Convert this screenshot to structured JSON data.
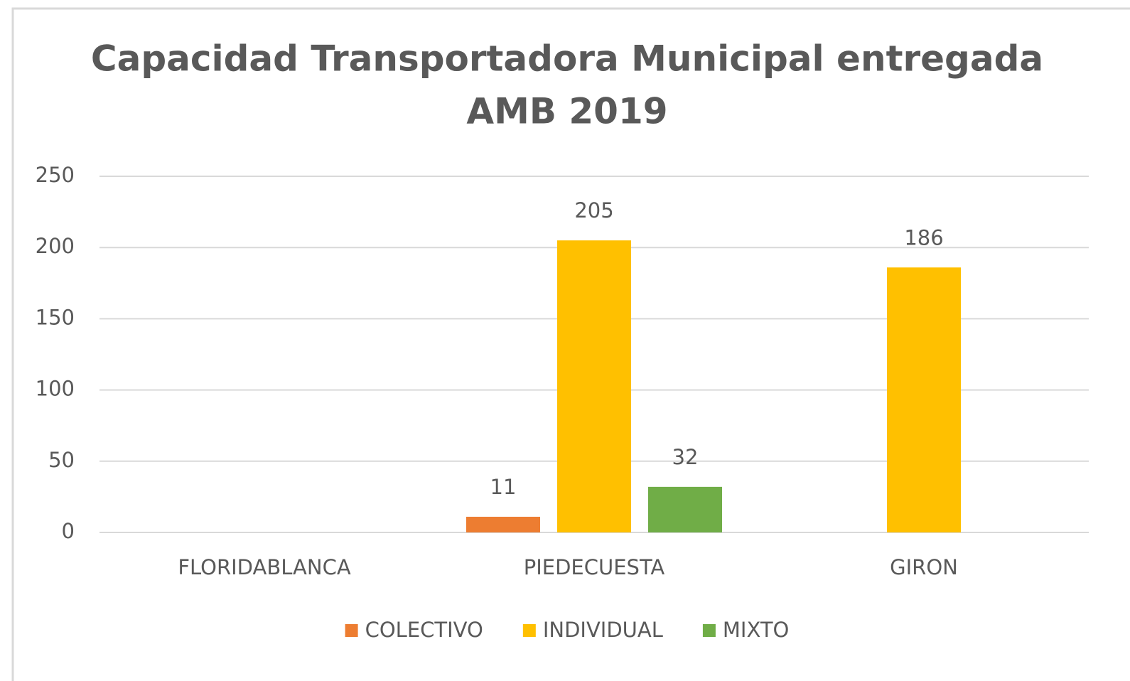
{
  "chart_data": {
    "type": "bar",
    "title": [
      "Capacidad Transportadora Municipal entregada",
      "AMB 2019"
    ],
    "categories": [
      "FLORIDABLANCA",
      "PIEDECUESTA",
      "GIRON"
    ],
    "series": [
      {
        "name": "COLECTIVO",
        "color": "#ed7d31",
        "values": [
          null,
          11,
          null
        ]
      },
      {
        "name": "INDIVIDUAL",
        "color": "#ffc000",
        "values": [
          null,
          205,
          186
        ]
      },
      {
        "name": "MIXTO",
        "color": "#70ad47",
        "values": [
          null,
          32,
          null
        ]
      }
    ],
    "ylim": [
      0,
      250
    ],
    "yticks": [
      0,
      50,
      100,
      150,
      200,
      250
    ],
    "grid": true,
    "legend": "bottom"
  }
}
